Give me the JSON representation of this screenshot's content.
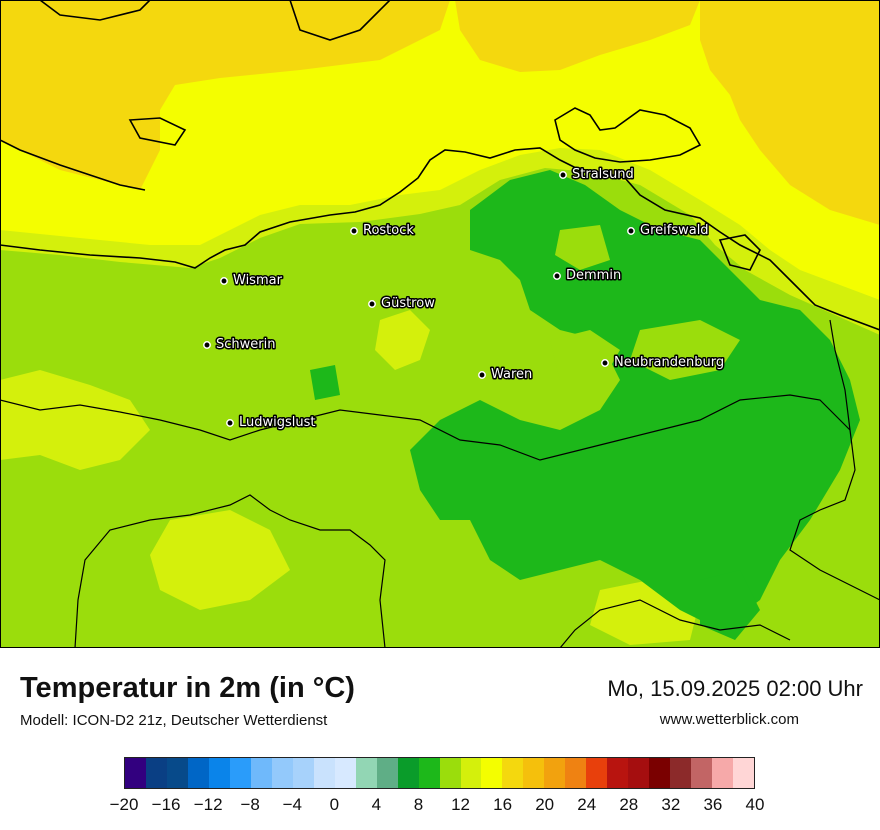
{
  "map": {
    "cities": [
      {
        "name": "Stralsund"
      },
      {
        "name": "Rostock"
      },
      {
        "name": "Greifswald"
      },
      {
        "name": "Wismar"
      },
      {
        "name": "Demmin"
      },
      {
        "name": "Güstrow"
      },
      {
        "name": "Schwerin"
      },
      {
        "name": "Neubrandenburg"
      },
      {
        "name": "Waren"
      },
      {
        "name": "Ludwigslust"
      }
    ]
  },
  "footer": {
    "title": "Temperatur in 2m (in °C)",
    "subtitle": "Modell: ICON-D2 21z, Deutscher Wetterdienst",
    "datetime": "Mo, 15.09.2025 02:00 Uhr",
    "website": "www.wetterblick.com"
  },
  "legend": {
    "colors": [
      "#32007f",
      "#0a3f84",
      "#074a8a",
      "#0066c6",
      "#0a84ea",
      "#2a9cfa",
      "#6fb9fb",
      "#93c9fb",
      "#a7d2fb",
      "#c9e2fd",
      "#d7e9ff",
      "#92d6b4",
      "#5fae86",
      "#0a9c2a",
      "#1db81a",
      "#9bdd0c",
      "#d4f00c",
      "#f4fe00",
      "#f4d80e",
      "#f5c00c",
      "#f2a20e",
      "#ef8212",
      "#e8400c",
      "#b8140f",
      "#a50e0f",
      "#7a0000",
      "#8c2a2a",
      "#c26565",
      "#f6a9a9",
      "#ffd6d6"
    ],
    "tick_labels": [
      "−20",
      "−16",
      "−12",
      "−8",
      "−4",
      "0",
      "4",
      "8",
      "12",
      "16",
      "20",
      "24",
      "28",
      "32",
      "36",
      "40"
    ]
  }
}
